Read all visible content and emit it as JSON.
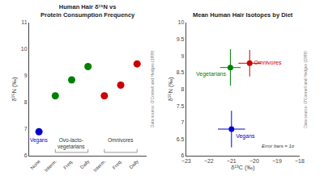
{
  "chart_data": [
    {
      "type": "scatter",
      "title": "Human Hair δ¹⁵N vs\nProtein Consumption Frequency",
      "ylabel": "δ¹⁵N (‰)",
      "categories": [
        "None",
        "Interm.",
        "Freq.",
        "Daily",
        "Interm.",
        "Freq.",
        "Daily"
      ],
      "values": [
        6.9,
        8.25,
        8.85,
        9.35,
        8.25,
        8.65,
        9.45
      ],
      "colors": [
        "#0000cc",
        "#008000",
        "#008000",
        "#008000",
        "#cc0000",
        "#cc0000",
        "#cc0000"
      ],
      "ylim": [
        6,
        11
      ],
      "yticks": [
        6,
        7,
        8,
        9,
        10,
        11
      ],
      "grid": false,
      "annotations": [
        {
          "text": "Vegans",
          "color": "#0000cc",
          "span": [
            0,
            0
          ]
        },
        {
          "text": "Ovo-lacto-\nvegetarians",
          "color": "#333333",
          "span": [
            1,
            3
          ]
        },
        {
          "text": "Omnivores",
          "color": "#333333",
          "span": [
            4,
            6
          ]
        },
        {
          "text": "Data source: O'Connell and Hedges (1999)",
          "color": "gray"
        }
      ]
    },
    {
      "type": "scatter",
      "title": "Mean Human Hair Isotopes by Diet",
      "xlabel": "δ¹³C (‰)",
      "ylabel": "δ¹⁵N (‰)",
      "xlim": [
        -23,
        -18
      ],
      "ylim": [
        6,
        10
      ],
      "xticks": [
        -23,
        -22,
        -21,
        -20,
        -19,
        -18
      ],
      "yticks": [
        6,
        6.5,
        7,
        7.5,
        8,
        8.5,
        9,
        9.5,
        10
      ],
      "grid": false,
      "series": [
        {
          "name": "Vegans",
          "color": "#0000cc",
          "x": [
            -21.0
          ],
          "values": [
            6.8
          ],
          "xerr": [
            0.6
          ],
          "yerr": [
            0.55
          ]
        },
        {
          "name": "Vegetarians",
          "color": "#008000",
          "x": [
            -21.05
          ],
          "values": [
            8.65
          ],
          "xerr": [
            0.45
          ],
          "yerr": [
            0.55
          ]
        },
        {
          "name": "Omnivores",
          "color": "#cc0000",
          "x": [
            -20.2
          ],
          "values": [
            8.78
          ],
          "xerr": [
            0.5
          ],
          "yerr": [
            0.4
          ]
        }
      ],
      "annotations": [
        {
          "text": "Error bars = 1σ",
          "color": "#333333",
          "style": "italic"
        },
        {
          "text": "Data source: O'Connell and Hedges (1999)",
          "color": "gray"
        }
      ]
    }
  ]
}
